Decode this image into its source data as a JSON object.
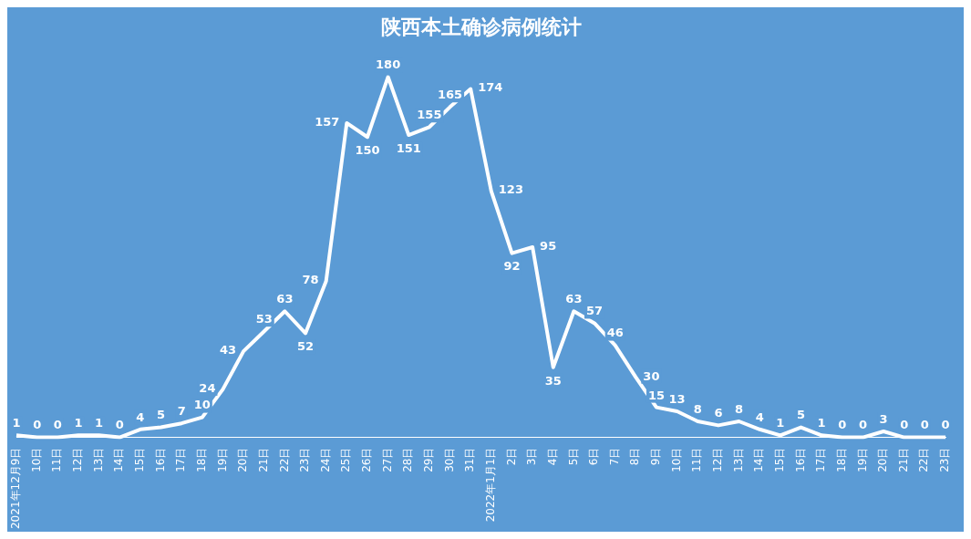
{
  "chart_data": {
    "type": "line",
    "title": "陕西本土确诊病例统计",
    "categories": [
      "2021年12月9日",
      "10日",
      "11日",
      "12日",
      "13日",
      "14日",
      "15日",
      "16日",
      "17日",
      "18日",
      "19日",
      "20日",
      "21日",
      "22日",
      "23日",
      "24日",
      "25日",
      "26日",
      "27日",
      "28日",
      "29日",
      "30日",
      "31日",
      "2022年1月1日",
      "2日",
      "3日",
      "4日",
      "5日",
      "6日",
      "7日",
      "8日",
      "9日",
      "10日",
      "11日",
      "12日",
      "13日",
      "14日",
      "15日",
      "16日",
      "17日",
      "18日",
      "19日",
      "20日",
      "21日",
      "22日",
      "23日"
    ],
    "series": [
      {
        "color": "#ffffff",
        "values": [
          1,
          0,
          0,
          1,
          1,
          0,
          4,
          5,
          7,
          10,
          24,
          43,
          53,
          63,
          52,
          78,
          157,
          150,
          180,
          151,
          155,
          165,
          174,
          123,
          92,
          95,
          35,
          63,
          57,
          46,
          30,
          15,
          13,
          8,
          6,
          8,
          4,
          1,
          5,
          1,
          0,
          0,
          3,
          0,
          0,
          0
        ]
      }
    ],
    "data_labels": true,
    "grid": false,
    "legend": false,
    "marker": "none",
    "line_style": "solid"
  }
}
